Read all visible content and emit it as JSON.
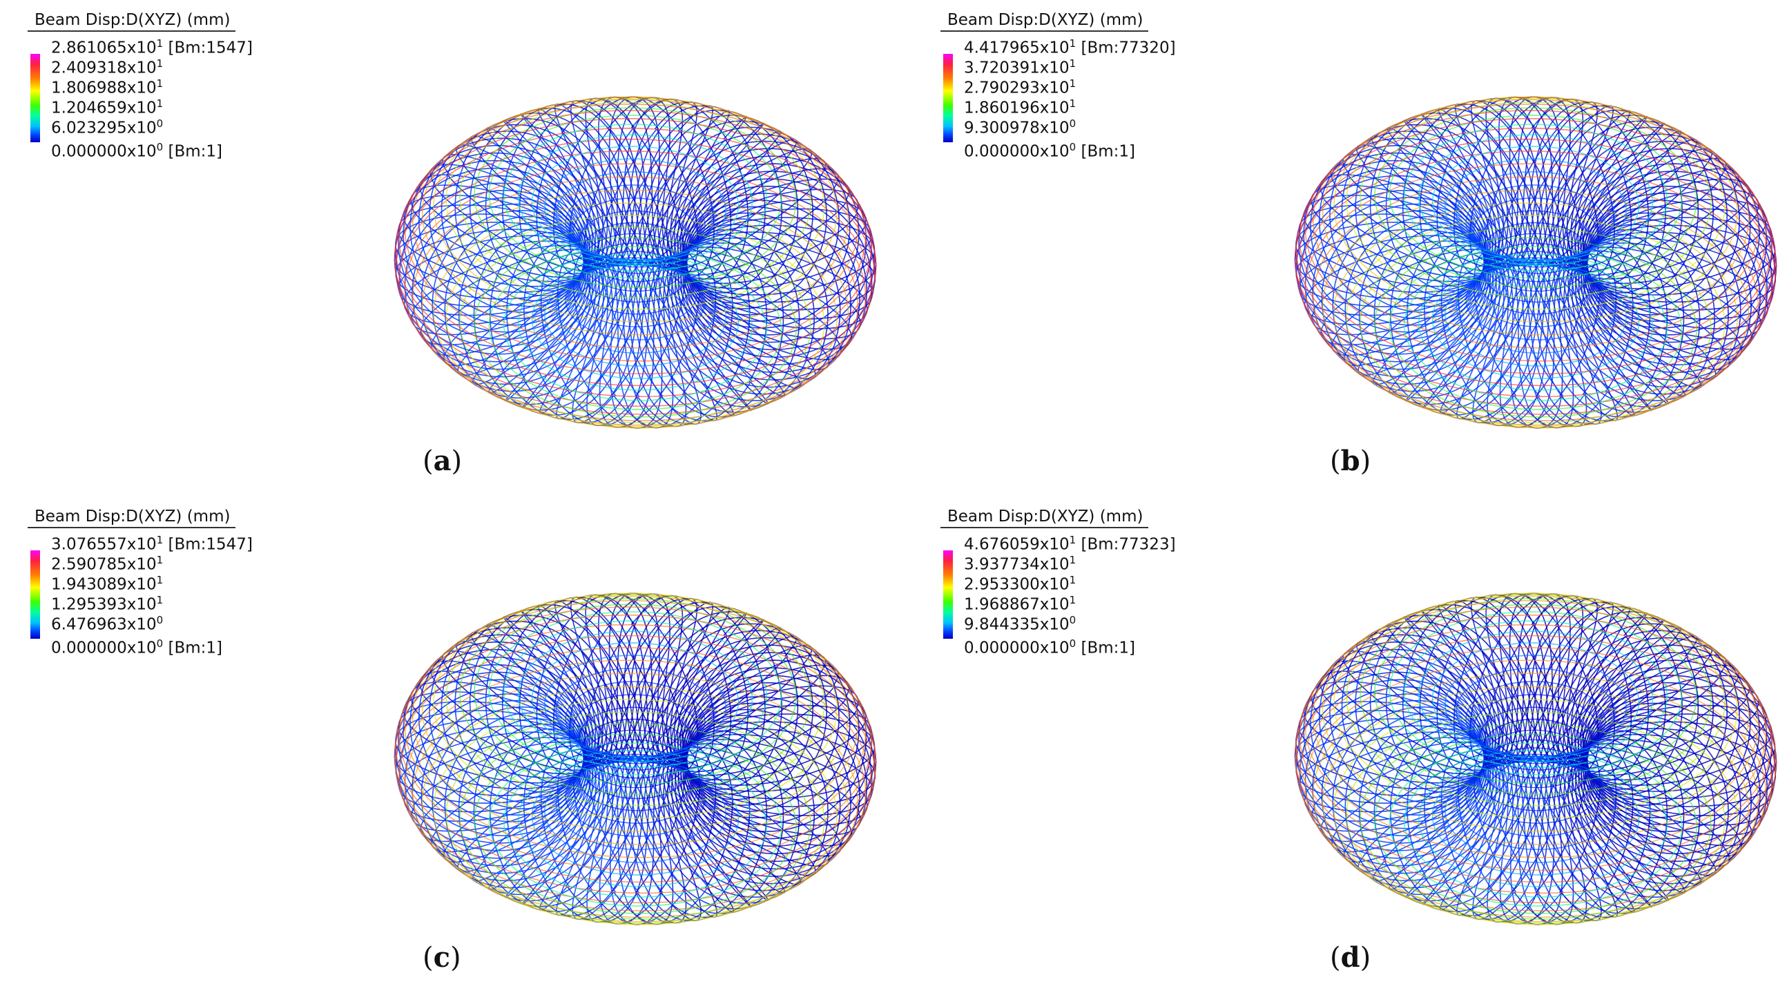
{
  "legend_title": "Beam Disp:D(XYZ)  (mm)",
  "panels": [
    {
      "label": "a",
      "values": [
        {
          "mantissa": "2.861065",
          "exp": "1",
          "suffix": "[Bm:1547]"
        },
        {
          "mantissa": "2.409318",
          "exp": "1",
          "suffix": ""
        },
        {
          "mantissa": "1.806988",
          "exp": "1",
          "suffix": ""
        },
        {
          "mantissa": "1.204659",
          "exp": "1",
          "suffix": ""
        },
        {
          "mantissa": "6.023295",
          "exp": "0",
          "suffix": ""
        },
        {
          "mantissa": "0.000000",
          "exp": "0",
          "suffix": "[Bm:1]"
        }
      ]
    },
    {
      "label": "b",
      "values": [
        {
          "mantissa": "4.417965",
          "exp": "1",
          "suffix": "[Bm:77320]"
        },
        {
          "mantissa": "3.720391",
          "exp": "1",
          "suffix": ""
        },
        {
          "mantissa": "2.790293",
          "exp": "1",
          "suffix": ""
        },
        {
          "mantissa": "1.860196",
          "exp": "1",
          "suffix": ""
        },
        {
          "mantissa": "9.300978",
          "exp": "0",
          "suffix": ""
        },
        {
          "mantissa": "0.000000",
          "exp": "0",
          "suffix": "[Bm:1]"
        }
      ]
    },
    {
      "label": "c",
      "values": [
        {
          "mantissa": "3.076557",
          "exp": "1",
          "suffix": "[Bm:1547]"
        },
        {
          "mantissa": "2.590785",
          "exp": "1",
          "suffix": ""
        },
        {
          "mantissa": "1.943089",
          "exp": "1",
          "suffix": ""
        },
        {
          "mantissa": "1.295393",
          "exp": "1",
          "suffix": ""
        },
        {
          "mantissa": "6.476963",
          "exp": "0",
          "suffix": ""
        },
        {
          "mantissa": "0.000000",
          "exp": "0",
          "suffix": "[Bm:1]"
        }
      ]
    },
    {
      "label": "d",
      "values": [
        {
          "mantissa": "4.676059",
          "exp": "1",
          "suffix": "[Bm:77323]"
        },
        {
          "mantissa": "3.937734",
          "exp": "1",
          "suffix": ""
        },
        {
          "mantissa": "2.953300",
          "exp": "1",
          "suffix": ""
        },
        {
          "mantissa": "1.968867",
          "exp": "1",
          "suffix": ""
        },
        {
          "mantissa": "9.844335",
          "exp": "0",
          "suffix": ""
        },
        {
          "mantissa": "0.000000",
          "exp": "0",
          "suffix": "[Bm:1]"
        }
      ]
    }
  ],
  "colors": {
    "max": "#ff00ff",
    "high": "#ff2040",
    "mid_high": "#ffcc00",
    "mid": "#40e000",
    "low": "#00c8ff",
    "min": "#0000c0"
  }
}
